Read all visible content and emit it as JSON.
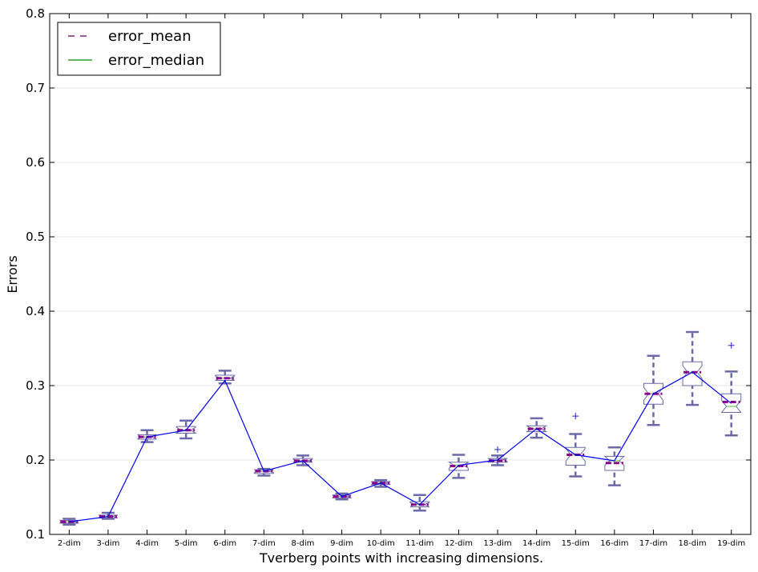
{
  "chart_data": {
    "type": "box",
    "xlabel": "Tverberg points with increasing dimensions.",
    "ylabel": "Errors",
    "ylim": [
      0.1,
      0.8
    ],
    "yticks": [
      "0.1",
      "0.2",
      "0.3",
      "0.4",
      "0.5",
      "0.6",
      "0.7",
      "0.8"
    ],
    "grid": "horizontal",
    "legend_position": "top-left",
    "legend": [
      {
        "label": "error_mean",
        "style": "dashed",
        "color": "#7b1f7b"
      },
      {
        "label": "error_median",
        "style": "solid",
        "color": "#2ca02c"
      }
    ],
    "categories": [
      "2-dim",
      "3-dim",
      "4-dim",
      "5-dim",
      "6-dim",
      "7-dim",
      "8-dim",
      "9-dim",
      "10-dim",
      "11-dim",
      "12-dim",
      "13-dim",
      "14-dim",
      "15-dim",
      "16-dim",
      "17-dim",
      "18-dim",
      "19-dim"
    ],
    "boxes": [
      {
        "wlo": 0.113,
        "q1": 0.115,
        "med": 0.117,
        "q3": 0.119,
        "whi": 0.121,
        "mean": 0.117,
        "outliers": []
      },
      {
        "wlo": 0.121,
        "q1": 0.122,
        "med": 0.124,
        "q3": 0.126,
        "whi": 0.129,
        "mean": 0.124,
        "outliers": []
      },
      {
        "wlo": 0.224,
        "q1": 0.228,
        "med": 0.231,
        "q3": 0.234,
        "whi": 0.24,
        "mean": 0.231,
        "outliers": []
      },
      {
        "wlo": 0.229,
        "q1": 0.236,
        "med": 0.24,
        "q3": 0.245,
        "whi": 0.253,
        "mean": 0.24,
        "outliers": []
      },
      {
        "wlo": 0.303,
        "q1": 0.307,
        "med": 0.31,
        "q3": 0.314,
        "whi": 0.32,
        "mean": 0.31,
        "outliers": []
      },
      {
        "wlo": 0.179,
        "q1": 0.182,
        "med": 0.185,
        "q3": 0.187,
        "whi": 0.188,
        "mean": 0.185,
        "outliers": []
      },
      {
        "wlo": 0.193,
        "q1": 0.197,
        "med": 0.199,
        "q3": 0.202,
        "whi": 0.206,
        "mean": 0.199,
        "outliers": []
      },
      {
        "wlo": 0.147,
        "q1": 0.149,
        "med": 0.151,
        "q3": 0.153,
        "whi": 0.155,
        "mean": 0.151,
        "outliers": []
      },
      {
        "wlo": 0.164,
        "q1": 0.167,
        "med": 0.169,
        "q3": 0.171,
        "whi": 0.173,
        "mean": 0.169,
        "outliers": []
      },
      {
        "wlo": 0.132,
        "q1": 0.137,
        "med": 0.14,
        "q3": 0.144,
        "whi": 0.153,
        "mean": 0.14,
        "outliers": []
      },
      {
        "wlo": 0.176,
        "q1": 0.186,
        "med": 0.193,
        "q3": 0.197,
        "whi": 0.207,
        "mean": 0.192,
        "outliers": []
      },
      {
        "wlo": 0.193,
        "q1": 0.197,
        "med": 0.2,
        "q3": 0.202,
        "whi": 0.206,
        "mean": 0.199,
        "outliers": [
          0.214
        ]
      },
      {
        "wlo": 0.23,
        "q1": 0.238,
        "med": 0.242,
        "q3": 0.246,
        "whi": 0.256,
        "mean": 0.242,
        "outliers": []
      },
      {
        "wlo": 0.178,
        "q1": 0.193,
        "med": 0.207,
        "q3": 0.217,
        "whi": 0.235,
        "mean": 0.207,
        "outliers": [
          0.259
        ]
      },
      {
        "wlo": 0.166,
        "q1": 0.186,
        "med": 0.199,
        "q3": 0.205,
        "whi": 0.217,
        "mean": 0.196,
        "outliers": []
      },
      {
        "wlo": 0.247,
        "q1": 0.275,
        "med": 0.289,
        "q3": 0.303,
        "whi": 0.34,
        "mean": 0.289,
        "outliers": []
      },
      {
        "wlo": 0.274,
        "q1": 0.3,
        "med": 0.318,
        "q3": 0.332,
        "whi": 0.372,
        "mean": 0.318,
        "outliers": []
      },
      {
        "wlo": 0.233,
        "q1": 0.264,
        "med": 0.272,
        "q3": 0.289,
        "whi": 0.319,
        "mean": 0.278,
        "outliers": [
          0.354
        ]
      }
    ],
    "trend_line": [
      0.117,
      0.124,
      0.231,
      0.24,
      0.307,
      0.185,
      0.199,
      0.151,
      0.169,
      0.14,
      0.193,
      0.2,
      0.242,
      0.207,
      0.199,
      0.289,
      0.318,
      0.276
    ]
  }
}
